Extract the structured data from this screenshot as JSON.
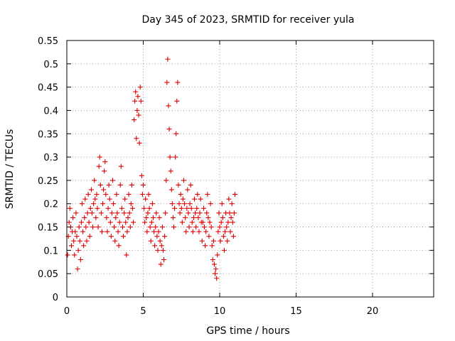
{
  "chart_data": {
    "type": "scatter",
    "title": "Day 345 of 2023, SRMTID for receiver yula",
    "xlabel": "GPS time / hours",
    "ylabel": "SRMTID / TECUs",
    "xlim": [
      0,
      24
    ],
    "ylim": [
      0,
      0.55
    ],
    "xticks": [
      0,
      5,
      10,
      15,
      20
    ],
    "xtick_labels": [
      "0",
      "5",
      "10",
      "15",
      "20"
    ],
    "yticks": [
      0,
      0.05,
      0.1,
      0.15,
      0.2,
      0.25,
      0.3,
      0.35,
      0.4,
      0.45,
      0.5,
      0.55
    ],
    "ytick_labels": [
      "0",
      "0.05",
      "0.1",
      "0.15",
      "0.2",
      "0.25",
      "0.3",
      "0.35",
      "0.4",
      "0.45",
      "0.5",
      "0.55"
    ],
    "grid": true,
    "marker": "+",
    "color": "#e00000",
    "series": [
      {
        "name": "SRMTID",
        "points": [
          [
            0.05,
            0.09
          ],
          [
            0.1,
            0.13
          ],
          [
            0.15,
            0.16
          ],
          [
            0.2,
            0.19
          ],
          [
            0.25,
            0.15
          ],
          [
            0.3,
            0.11
          ],
          [
            0.35,
            0.14
          ],
          [
            0.4,
            0.17
          ],
          [
            0.45,
            0.12
          ],
          [
            0.5,
            0.09
          ],
          [
            0.55,
            0.14
          ],
          [
            0.6,
            0.18
          ],
          [
            0.65,
            0.13
          ],
          [
            0.7,
            0.06
          ],
          [
            0.75,
            0.1
          ],
          [
            0.8,
            0.15
          ],
          [
            0.85,
            0.12
          ],
          [
            0.9,
            0.08
          ],
          [
            0.95,
            0.16
          ],
          [
            1.0,
            0.2
          ],
          [
            1.05,
            0.14
          ],
          [
            1.1,
            0.11
          ],
          [
            1.15,
            0.17
          ],
          [
            1.2,
            0.21
          ],
          [
            1.25,
            0.15
          ],
          [
            1.3,
            0.12
          ],
          [
            1.35,
            0.18
          ],
          [
            1.4,
            0.22
          ],
          [
            1.45,
            0.16
          ],
          [
            1.5,
            0.13
          ],
          [
            1.55,
            0.19
          ],
          [
            1.6,
            0.23
          ],
          [
            1.65,
            0.18
          ],
          [
            1.7,
            0.15
          ],
          [
            1.75,
            0.2
          ],
          [
            1.8,
            0.25
          ],
          [
            1.85,
            0.21
          ],
          [
            1.9,
            0.17
          ],
          [
            1.95,
            0.22
          ],
          [
            2.0,
            0.19
          ],
          [
            2.05,
            0.15
          ],
          [
            2.1,
            0.28
          ],
          [
            2.15,
            0.3
          ],
          [
            2.2,
            0.24
          ],
          [
            2.25,
            0.18
          ],
          [
            2.3,
            0.14
          ],
          [
            2.35,
            0.2
          ],
          [
            2.4,
            0.23
          ],
          [
            2.45,
            0.27
          ],
          [
            2.5,
            0.29
          ],
          [
            2.55,
            0.22
          ],
          [
            2.6,
            0.17
          ],
          [
            2.65,
            0.14
          ],
          [
            2.7,
            0.19
          ],
          [
            2.75,
            0.24
          ],
          [
            2.8,
            0.21
          ],
          [
            2.85,
            0.16
          ],
          [
            2.9,
            0.13
          ],
          [
            2.95,
            0.18
          ],
          [
            3.0,
            0.25
          ],
          [
            3.05,
            0.2
          ],
          [
            3.1,
            0.15
          ],
          [
            3.15,
            0.12
          ],
          [
            3.2,
            0.17
          ],
          [
            3.25,
            0.22
          ],
          [
            3.3,
            0.18
          ],
          [
            3.35,
            0.14
          ],
          [
            3.4,
            0.11
          ],
          [
            3.45,
            0.16
          ],
          [
            3.5,
            0.24
          ],
          [
            3.55,
            0.28
          ],
          [
            3.6,
            0.19
          ],
          [
            3.65,
            0.15
          ],
          [
            3.7,
            0.13
          ],
          [
            3.75,
            0.18
          ],
          [
            3.8,
            0.21
          ],
          [
            3.85,
            0.16
          ],
          [
            3.9,
            0.09
          ],
          [
            3.95,
            0.14
          ],
          [
            4.0,
            0.17
          ],
          [
            4.05,
            0.22
          ],
          [
            4.1,
            0.18
          ],
          [
            4.15,
            0.15
          ],
          [
            4.2,
            0.2
          ],
          [
            4.25,
            0.24
          ],
          [
            4.3,
            0.19
          ],
          [
            4.35,
            0.16
          ],
          [
            4.4,
            0.38
          ],
          [
            4.45,
            0.42
          ],
          [
            4.5,
            0.44
          ],
          [
            4.55,
            0.34
          ],
          [
            4.6,
            0.4
          ],
          [
            4.65,
            0.43
          ],
          [
            4.7,
            0.39
          ],
          [
            4.75,
            0.33
          ],
          [
            4.8,
            0.45
          ],
          [
            4.85,
            0.42
          ],
          [
            4.9,
            0.26
          ],
          [
            4.95,
            0.22
          ],
          [
            5.0,
            0.24
          ],
          [
            5.05,
            0.19
          ],
          [
            5.1,
            0.16
          ],
          [
            5.15,
            0.21
          ],
          [
            5.2,
            0.17
          ],
          [
            5.25,
            0.14
          ],
          [
            5.3,
            0.18
          ],
          [
            5.35,
            0.22
          ],
          [
            5.4,
            0.19
          ],
          [
            5.45,
            0.15
          ],
          [
            5.5,
            0.12
          ],
          [
            5.55,
            0.16
          ],
          [
            5.6,
            0.2
          ],
          [
            5.65,
            0.17
          ],
          [
            5.7,
            0.14
          ],
          [
            5.75,
            0.11
          ],
          [
            5.8,
            0.15
          ],
          [
            5.85,
            0.18
          ],
          [
            5.9,
            0.13
          ],
          [
            5.95,
            0.1
          ],
          [
            6.0,
            0.14
          ],
          [
            6.05,
            0.17
          ],
          [
            6.1,
            0.12
          ],
          [
            6.15,
            0.07
          ],
          [
            6.2,
            0.11
          ],
          [
            6.25,
            0.15
          ],
          [
            6.3,
            0.1
          ],
          [
            6.35,
            0.08
          ],
          [
            6.4,
            0.13
          ],
          [
            6.45,
            0.18
          ],
          [
            6.5,
            0.25
          ],
          [
            6.55,
            0.46
          ],
          [
            6.6,
            0.51
          ],
          [
            6.65,
            0.41
          ],
          [
            6.7,
            0.36
          ],
          [
            6.75,
            0.3
          ],
          [
            6.8,
            0.27
          ],
          [
            6.85,
            0.23
          ],
          [
            6.9,
            0.2
          ],
          [
            6.95,
            0.17
          ],
          [
            7.0,
            0.15
          ],
          [
            7.05,
            0.19
          ],
          [
            7.1,
            0.3
          ],
          [
            7.15,
            0.35
          ],
          [
            7.2,
            0.42
          ],
          [
            7.25,
            0.46
          ],
          [
            7.3,
            0.24
          ],
          [
            7.35,
            0.2
          ],
          [
            7.4,
            0.18
          ],
          [
            7.45,
            0.22
          ],
          [
            7.5,
            0.19
          ],
          [
            7.55,
            0.16
          ],
          [
            7.6,
            0.21
          ],
          [
            7.65,
            0.25
          ],
          [
            7.7,
            0.2
          ],
          [
            7.75,
            0.17
          ],
          [
            7.8,
            0.14
          ],
          [
            7.85,
            0.19
          ],
          [
            7.9,
            0.23
          ],
          [
            7.95,
            0.18
          ],
          [
            8.0,
            0.15
          ],
          [
            8.05,
            0.2
          ],
          [
            8.1,
            0.24
          ],
          [
            8.15,
            0.19
          ],
          [
            8.2,
            0.16
          ],
          [
            8.25,
            0.14
          ],
          [
            8.3,
            0.17
          ],
          [
            8.35,
            0.21
          ],
          [
            8.4,
            0.18
          ],
          [
            8.45,
            0.15
          ],
          [
            8.5,
            0.19
          ],
          [
            8.55,
            0.22
          ],
          [
            8.6,
            0.17
          ],
          [
            8.65,
            0.14
          ],
          [
            8.7,
            0.18
          ],
          [
            8.75,
            0.21
          ],
          [
            8.8,
            0.16
          ],
          [
            8.85,
            0.12
          ],
          [
            8.9,
            0.16
          ],
          [
            8.95,
            0.19
          ],
          [
            9.0,
            0.15
          ],
          [
            9.05,
            0.11
          ],
          [
            9.1,
            0.14
          ],
          [
            9.15,
            0.18
          ],
          [
            9.2,
            0.22
          ],
          [
            9.25,
            0.17
          ],
          [
            9.3,
            0.13
          ],
          [
            9.35,
            0.16
          ],
          [
            9.4,
            0.2
          ],
          [
            9.45,
            0.15
          ],
          [
            9.5,
            0.11
          ],
          [
            9.55,
            0.08
          ],
          [
            9.6,
            0.12
          ],
          [
            9.65,
            0.07
          ],
          [
            9.7,
            0.05
          ],
          [
            9.75,
            0.06
          ],
          [
            9.8,
            0.04
          ],
          [
            9.85,
            0.09
          ],
          [
            9.9,
            0.14
          ],
          [
            9.95,
            0.18
          ],
          [
            10.0,
            0.15
          ],
          [
            10.05,
            0.12
          ],
          [
            10.1,
            0.16
          ],
          [
            10.15,
            0.2
          ],
          [
            10.2,
            0.17
          ],
          [
            10.25,
            0.13
          ],
          [
            10.3,
            0.1
          ],
          [
            10.35,
            0.14
          ],
          [
            10.4,
            0.18
          ],
          [
            10.45,
            0.15
          ],
          [
            10.5,
            0.12
          ],
          [
            10.55,
            0.16
          ],
          [
            10.6,
            0.21
          ],
          [
            10.65,
            0.18
          ],
          [
            10.7,
            0.14
          ],
          [
            10.75,
            0.17
          ],
          [
            10.8,
            0.2
          ],
          [
            10.85,
            0.16
          ],
          [
            10.9,
            0.13
          ],
          [
            10.95,
            0.18
          ],
          [
            11.0,
            0.22
          ]
        ]
      }
    ]
  }
}
